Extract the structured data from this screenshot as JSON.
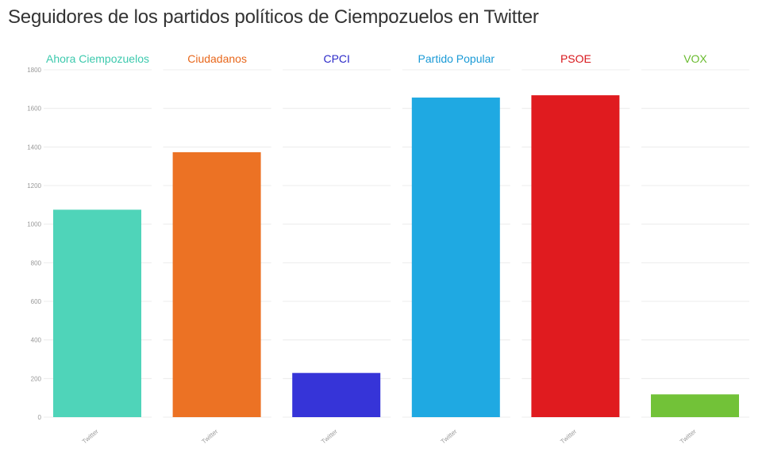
{
  "title": "Seguidores de los partidos políticos de Ciempozuelos en Twitter",
  "chart_data": {
    "type": "bar",
    "layout": "small-multiples",
    "title": "Seguidores de los partidos políticos de Ciempozuelos en Twitter",
    "xlabel": "",
    "ylabel": "",
    "ylim": [
      0,
      1800
    ],
    "yticks": [
      0,
      200,
      400,
      600,
      800,
      1000,
      1200,
      1400,
      1600,
      1800
    ],
    "grid": true,
    "panels": [
      {
        "name": "Ahora Ciempozuelos",
        "color": "#4fd4b9",
        "categories": [
          "Twitter"
        ],
        "values": [
          1075
        ]
      },
      {
        "name": "Ciudadanos",
        "color": "#ec7224",
        "categories": [
          "Twitter"
        ],
        "values": [
          1373
        ]
      },
      {
        "name": "CPCI",
        "color": "#3634d8",
        "categories": [
          "Twitter"
        ],
        "values": [
          229
        ]
      },
      {
        "name": "Partido Popular",
        "color": "#1fa9e2",
        "categories": [
          "Twitter"
        ],
        "values": [
          1656
        ]
      },
      {
        "name": "PSOE",
        "color": "#e01b1f",
        "categories": [
          "Twitter"
        ],
        "values": [
          1668
        ]
      },
      {
        "name": "VOX",
        "color": "#72c238",
        "categories": [
          "Twitter"
        ],
        "values": [
          118
        ]
      }
    ]
  },
  "colors": {
    "title": "#333333",
    "grid": "#ececec",
    "tick_text": "#999999",
    "ahora_label": "#3cc9ad",
    "cs_label": "#e8671b",
    "cpci_label": "#2b29c8",
    "pp_label": "#1a9ad6",
    "psoe_label": "#d8161b",
    "vox_label": "#69bb2e"
  }
}
